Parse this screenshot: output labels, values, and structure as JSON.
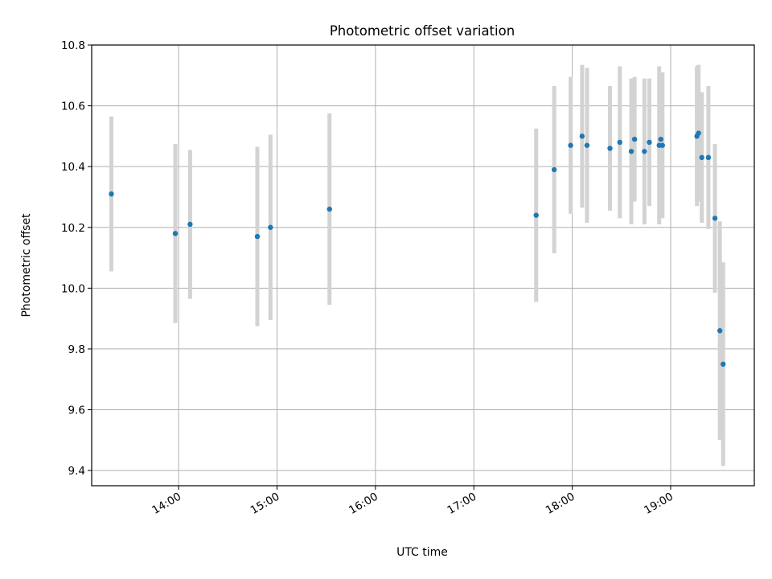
{
  "chart_data": {
    "type": "scatter",
    "title": "Photometric offset variation",
    "xlabel": "UTC time",
    "ylabel": "Photometric offset",
    "x_ticks": [
      "14:00",
      "15:00",
      "16:00",
      "17:00",
      "18:00",
      "19:00"
    ],
    "y_ticks": [
      "9.4",
      "9.6",
      "9.8",
      "10.0",
      "10.2",
      "10.4",
      "10.6",
      "10.8"
    ],
    "xlim": [
      "13:07",
      "19:51"
    ],
    "ylim": [
      9.35,
      10.8
    ],
    "grid": true,
    "colors": {
      "marker": "#1f77b4",
      "errorbar": "#d3d3d3",
      "grid": "#b0b0b0"
    },
    "series": [
      {
        "points": [
          {
            "x": "13:19",
            "y": 10.31,
            "yerr": 0.255
          },
          {
            "x": "13:58",
            "y": 10.18,
            "yerr": 0.295
          },
          {
            "x": "14:07",
            "y": 10.21,
            "yerr": 0.245
          },
          {
            "x": "14:48",
            "y": 10.17,
            "yerr": 0.295
          },
          {
            "x": "14:56",
            "y": 10.2,
            "yerr": 0.305
          },
          {
            "x": "15:32",
            "y": 10.26,
            "yerr": 0.315
          },
          {
            "x": "17:38",
            "y": 10.24,
            "yerr": 0.285
          },
          {
            "x": "17:49",
            "y": 10.39,
            "yerr": 0.275
          },
          {
            "x": "17:59",
            "y": 10.47,
            "yerr": 0.225
          },
          {
            "x": "18:06",
            "y": 10.5,
            "yerr": 0.235
          },
          {
            "x": "18:09",
            "y": 10.47,
            "yerr": 0.255
          },
          {
            "x": "18:23",
            "y": 10.46,
            "yerr": 0.205
          },
          {
            "x": "18:29",
            "y": 10.48,
            "yerr": 0.25
          },
          {
            "x": "18:36",
            "y": 10.45,
            "yerr": 0.24
          },
          {
            "x": "18:38",
            "y": 10.49,
            "yerr": 0.205
          },
          {
            "x": "18:44",
            "y": 10.45,
            "yerr": 0.24
          },
          {
            "x": "18:47",
            "y": 10.48,
            "yerr": 0.21
          },
          {
            "x": "18:53",
            "y": 10.47,
            "yerr": 0.26
          },
          {
            "x": "18:54",
            "y": 10.49,
            "yerr": 0.22
          },
          {
            "x": "18:55",
            "y": 10.47,
            "yerr": 0.24
          },
          {
            "x": "19:16",
            "y": 10.5,
            "yerr": 0.23
          },
          {
            "x": "19:17",
            "y": 10.51,
            "yerr": 0.225
          },
          {
            "x": "19:19",
            "y": 10.43,
            "yerr": 0.215
          },
          {
            "x": "19:23",
            "y": 10.43,
            "yerr": 0.235
          },
          {
            "x": "19:27",
            "y": 10.23,
            "yerr": 0.245
          },
          {
            "x": "19:30",
            "y": 9.86,
            "yerr": 0.36
          },
          {
            "x": "19:32",
            "y": 9.75,
            "yerr": 0.335
          }
        ]
      }
    ]
  }
}
